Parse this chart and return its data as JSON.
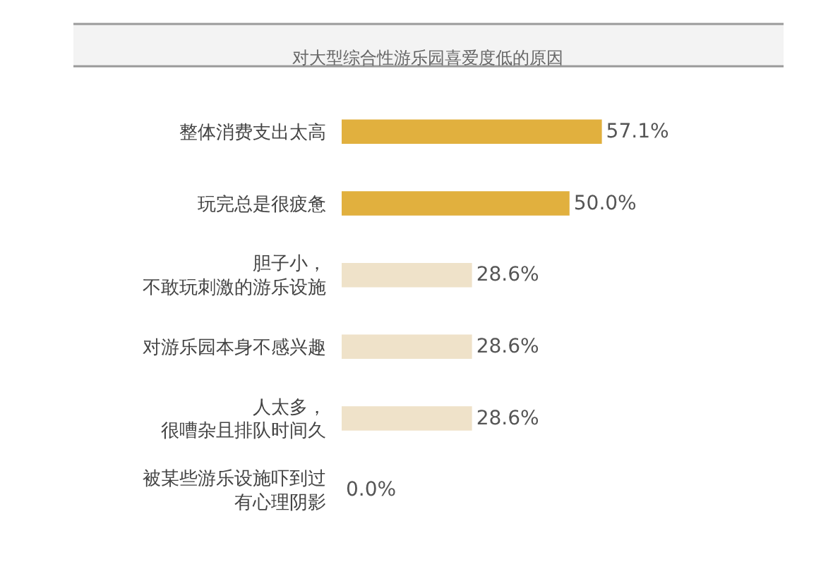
{
  "chart_data": {
    "type": "bar",
    "orientation": "horizontal",
    "title": "对大型综合性游乐园喜爱度低的原因",
    "categories": [
      "整体消费支出太高",
      "玩完总是很疲惫",
      "胆子小，不敢玩刺激的游乐设施",
      "对游乐园本身不感兴趣",
      "人太多，很嘈杂且排队时间久",
      "被某些游乐设施吓到过有心理阴影"
    ],
    "values": [
      57.1,
      50.0,
      28.6,
      28.6,
      28.6,
      0.0
    ],
    "value_labels": [
      "57.1%",
      "50.0%",
      "28.6%",
      "28.6%",
      "28.6%",
      "0.0%"
    ],
    "colors": [
      "#e1b03e",
      "#e1b03e",
      "#efe2c9",
      "#efe2c9",
      "#efe2c9",
      "#efe2c9"
    ]
  }
}
